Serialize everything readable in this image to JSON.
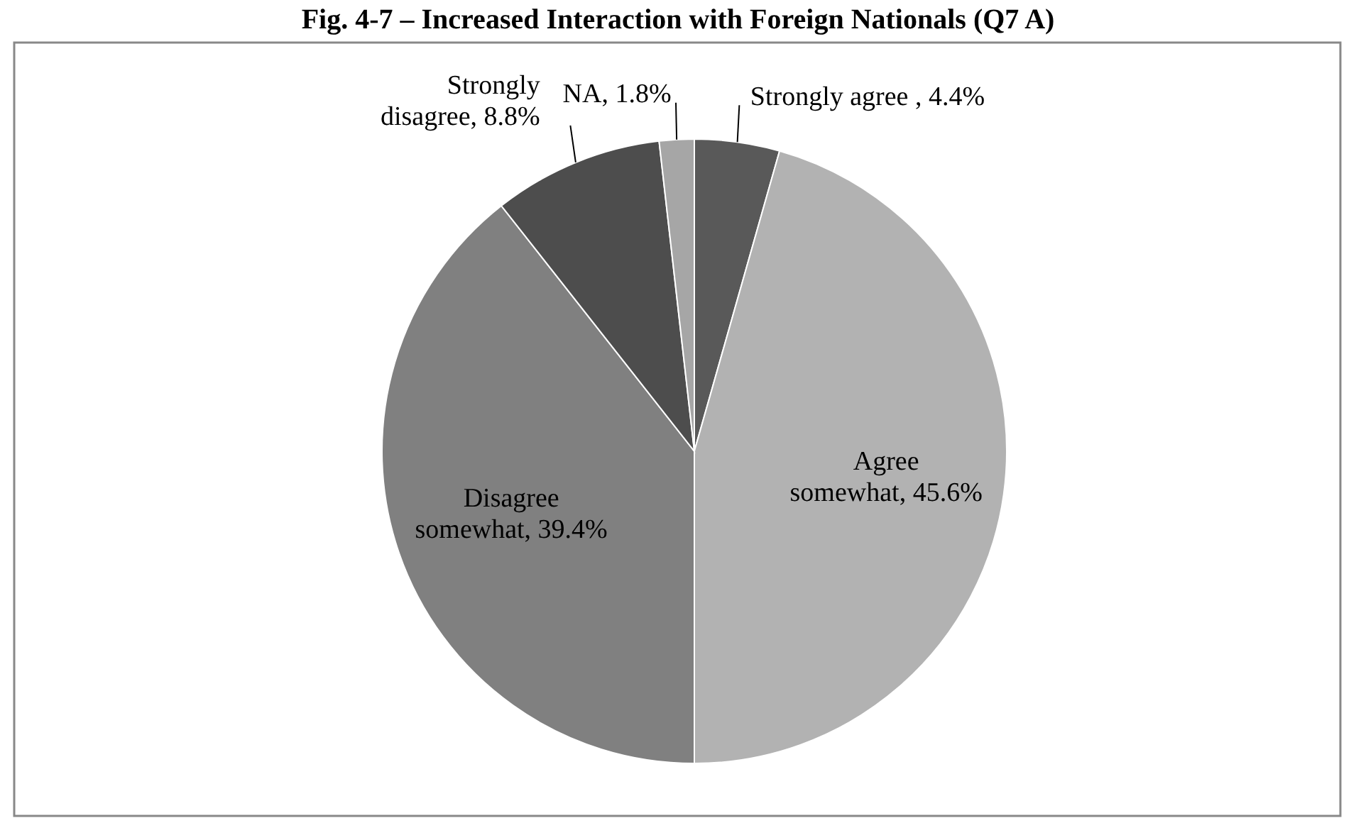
{
  "chart_data": {
    "type": "pie",
    "title": "Fig. 4-7 – Increased Interaction with Foreign Nationals (Q7 A)",
    "categories": [
      "Strongly agree ",
      "Agree somewhat",
      "Disagree somewhat",
      "Strongly disagree",
      "NA"
    ],
    "values": [
      4.4,
      45.6,
      39.4,
      8.8,
      1.8
    ],
    "value_labels": [
      "4.4%",
      "45.6%",
      "39.4%",
      "8.8%",
      "1.8%"
    ],
    "colors": [
      "#595959",
      "#b2b2b2",
      "#808080",
      "#4d4d4d",
      "#a6a6a6"
    ]
  }
}
